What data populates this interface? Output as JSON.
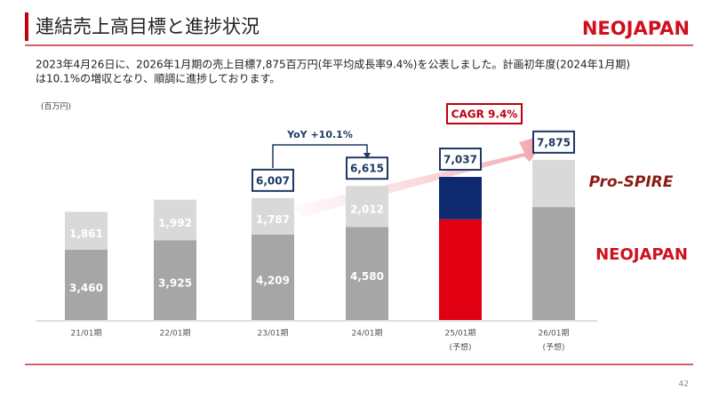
{
  "chart_data": {
    "type": "stacked-bar",
    "title": "連結売上高目標と進捗状況",
    "logo": "NEOJAPAN",
    "note_lines": [
      "2023年4月26日に、2026年1月期の売上目標7,875百万円(年平均成長率9.4%)を公表しました。計画初年度(2024年1月期)",
      "は10.1%の増収となり、順調に進捗しております。"
    ],
    "unit_label": "(百万円)",
    "categories": [
      "21/01期",
      "22/01期",
      "23/01期",
      "24/01期",
      "25/01期",
      "26/01期"
    ],
    "category_notes": [
      null,
      null,
      null,
      null,
      "(予想)",
      "(予想)"
    ],
    "series": [
      {
        "name": "NEOJAPAN",
        "colors": [
          "#a6a6a6",
          "#a6a6a6",
          "#a6a6a6",
          "#a6a6a6",
          "#e00012",
          "#a6a6a6"
        ],
        "values": [
          3460,
          3925,
          4209,
          4580,
          4950,
          5550
        ],
        "value_labels": [
          "3,460",
          "3,925",
          "4,209",
          "4,580",
          null,
          null
        ]
      },
      {
        "name": "Pro-SPIRE",
        "colors": [
          "#d9d9d9",
          "#d9d9d9",
          "#d9d9d9",
          "#d9d9d9",
          "#0d2a70",
          "#d9d9d9"
        ],
        "values": [
          1861,
          1992,
          1787,
          2012,
          2087,
          2325
        ],
        "value_labels": [
          "1,861",
          "1,992",
          "1,787",
          "2,012",
          null,
          null
        ]
      }
    ],
    "totals": {
      "values": [
        null,
        null,
        6007,
        6615,
        7037,
        7875
      ],
      "value_labels": [
        null,
        null,
        "6,007",
        "6,615",
        "7,037",
        "7,875"
      ]
    },
    "yoy_label": "YoY +10.1%",
    "cagr_label": "CAGR 9.4%",
    "page_number": "42",
    "ylim": [
      0,
      8000
    ]
  }
}
